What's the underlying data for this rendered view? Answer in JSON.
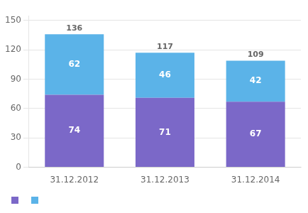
{
  "chart_data": {
    "type": "bar",
    "stacked": true,
    "categories": [
      "31.12.2012",
      "31.12.2013",
      "31.12.2014"
    ],
    "series": [
      {
        "color": "#7B68C8",
        "values": [
          74,
          71,
          67
        ]
      },
      {
        "color": "#5BB3E8",
        "values": [
          62,
          46,
          42
        ]
      }
    ],
    "totals": [
      136,
      117,
      109
    ],
    "ylim": [
      0,
      155
    ],
    "yticks": [
      0,
      30,
      60,
      90,
      120,
      150
    ],
    "grid": true,
    "data_labels": true,
    "legend": "bottom"
  }
}
